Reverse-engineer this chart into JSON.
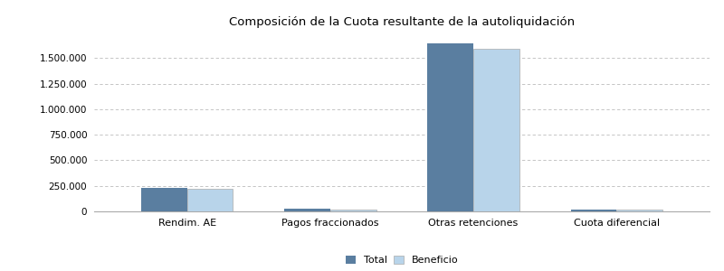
{
  "title": "Composición de la Cuota resultante de la autoliquidación",
  "categories": [
    "Rendim. AE",
    "Pagos fraccionados",
    "Otras retenciones",
    "Cuota diferencial"
  ],
  "total_values": [
    230000,
    25000,
    1640000,
    20000
  ],
  "beneficio_values": [
    225000,
    22000,
    1590000,
    17000
  ],
  "color_total": "#5a7ea0",
  "color_beneficio": "#b8d4ea",
  "background_color": "#ffffff",
  "ylim": [
    0,
    1750000
  ],
  "yticks": [
    0,
    250000,
    500000,
    750000,
    1000000,
    1250000,
    1500000
  ],
  "legend_labels": [
    "Total",
    "Beneficio"
  ],
  "bar_width": 0.32,
  "title_fontsize": 9.5,
  "grid_color": "#bbbbbb",
  "spine_color": "#aaaaaa",
  "tick_fontsize": 7.5,
  "xlabel_fontsize": 8
}
